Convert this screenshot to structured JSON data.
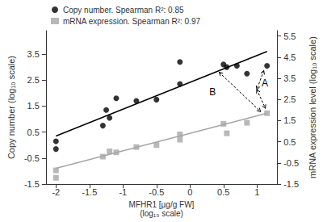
{
  "chart_data": {
    "type": "scatter",
    "x_label": "MFHR1 [µg/g FW]\n(log₁₀ scale)",
    "y_label": "Copy number (log₁₀ scale)",
    "y2_label": "mRNA expression level (log₁₀ scale)",
    "xlim": [
      -2.15,
      1.3
    ],
    "xticks": [
      -2,
      -1.5,
      -1,
      -0.5,
      0,
      0.5,
      1
    ],
    "ylim": [
      -1.5,
      4.4
    ],
    "yticks": [
      -1.5,
      -0.5,
      0.5,
      1.5,
      2.5,
      3.5
    ],
    "y2lim": [
      -1.5,
      5.75
    ],
    "y2ticks": [
      -1.5,
      -0.5,
      0.5,
      1.5,
      2.5,
      3.5,
      4.5,
      5.5
    ],
    "grid": false,
    "legend": "top-left",
    "annotations": [
      "A",
      "B"
    ],
    "series": [
      {
        "name": "Copy number. Spearman R²: 0.85",
        "color": "#000000",
        "marker": "circle",
        "x": [
          -2,
          -2,
          -1.3,
          -1.25,
          -1.2,
          -1.1,
          -0.8,
          -0.5,
          -0.15,
          -0.15,
          0.5,
          0.55,
          0.7,
          0.85,
          1.15
        ],
        "values": [
          0.15,
          -0.15,
          0.75,
          1.35,
          1.05,
          1.8,
          1.7,
          1.75,
          3.2,
          2.35,
          3.1,
          3.0,
          3.05,
          2.75,
          3.05
        ],
        "fit_x": [
          -2,
          1.15
        ],
        "fit_values": [
          0.35,
          3.6
        ]
      },
      {
        "name": "mRNA expression. Spearman R²: 0.97",
        "color": "#a6a6a6",
        "marker": "square",
        "axis": "y2",
        "x": [
          -2,
          -2,
          -1.3,
          -1.2,
          -1.1,
          -0.8,
          -0.5,
          -0.15,
          -0.15,
          0.5,
          0.55,
          0.85,
          1.15
        ],
        "values": [
          -0.85,
          -1.2,
          -0.2,
          0.05,
          0.0,
          0.25,
          0.35,
          0.85,
          0.6,
          1.35,
          0.9,
          1.4,
          1.85
        ],
        "fit_x": [
          -2,
          1.15
        ],
        "fit_values": [
          -0.75,
          1.85
        ]
      }
    ]
  }
}
